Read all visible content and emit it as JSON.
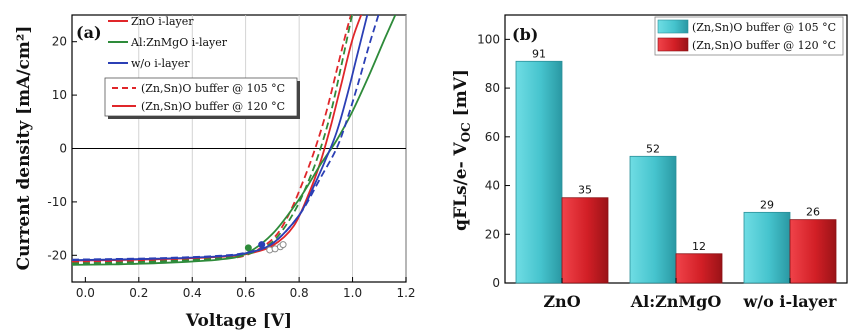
{
  "chart_data": [
    {
      "type": "line",
      "panel_label": "(a)",
      "xlabel": "Voltage [V]",
      "ylabel": "Current density [mA/cm²]",
      "xlim": [
        -0.05,
        1.2
      ],
      "ylim": [
        -25,
        25
      ],
      "xticks": [
        0.0,
        0.2,
        0.4,
        0.6,
        0.8,
        1.0,
        1.2
      ],
      "xtick_labels": [
        "0.0",
        "0.2",
        "0.4",
        "0.6",
        "0.8",
        "1.0",
        "1.2"
      ],
      "yticks": [
        -20,
        -10,
        0,
        10,
        20
      ],
      "ytick_labels": [
        "-20",
        "-10",
        "0",
        "10",
        "20"
      ],
      "grid": "vertical",
      "legend_layers": [
        {
          "name": "ZnO i-layer",
          "color": "#e0262a"
        },
        {
          "name": "Al:ZnMgO i-layer",
          "color": "#2e8b3a"
        },
        {
          "name": "w/o i-layer",
          "color": "#2b3fb5"
        }
      ],
      "legend_buffers": [
        {
          "name": "(Zn,Sn)O buffer @ 105 °C",
          "dash": "dashed",
          "color": "#e0262a"
        },
        {
          "name": "(Zn,Sn)O buffer @ 120 °C",
          "dash": "solid",
          "color": "#e0262a"
        }
      ],
      "series": [
        {
          "name": "ZnO i-layer",
          "buffer": "(Zn,Sn)O buffer @ 120 °C",
          "color": "#e0262a",
          "dash": "solid",
          "x": [
            -0.05,
            0.1,
            0.3,
            0.5,
            0.6,
            0.7,
            0.78,
            0.84,
            0.88,
            0.92,
            0.96,
            1.0,
            1.04
          ],
          "y": [
            -21.0,
            -20.9,
            -20.7,
            -20.3,
            -19.8,
            -18.2,
            -14.5,
            -8.0,
            -2.5,
            4.5,
            12.5,
            20.5,
            26.0
          ]
        },
        {
          "name": "ZnO i-layer",
          "buffer": "(Zn,Sn)O buffer @ 105 °C",
          "color": "#e0262a",
          "dash": "dashed",
          "x": [
            -0.05,
            0.1,
            0.3,
            0.5,
            0.6,
            0.7,
            0.76,
            0.82,
            0.86,
            0.9,
            0.94,
            0.98,
            1.0
          ],
          "y": [
            -21.2,
            -21.1,
            -20.9,
            -20.5,
            -20.0,
            -17.0,
            -12.5,
            -5.5,
            0.0,
            6.5,
            14.5,
            22.5,
            26.0
          ]
        },
        {
          "name": "Al:ZnMgO i-layer",
          "buffer": "(Zn,Sn)O buffer @ 120 °C",
          "color": "#2e8b3a",
          "dash": "solid",
          "x": [
            -0.05,
            0.1,
            0.3,
            0.5,
            0.6,
            0.7,
            0.8,
            0.88,
            0.94,
            1.0,
            1.06,
            1.12,
            1.16
          ],
          "y": [
            -21.8,
            -21.7,
            -21.4,
            -20.8,
            -19.7,
            -16.0,
            -9.5,
            -3.0,
            1.5,
            7.0,
            13.5,
            20.5,
            25.0
          ]
        },
        {
          "name": "Al:ZnMgO i-layer",
          "buffer": "(Zn,Sn)O buffer @ 105 °C",
          "color": "#2e8b3a",
          "dash": "dashed",
          "x": [
            -0.05,
            0.1,
            0.3,
            0.5,
            0.6,
            0.7,
            0.78,
            0.84,
            0.88,
            0.92,
            0.96,
            1.0
          ],
          "y": [
            -21.5,
            -21.4,
            -21.1,
            -20.6,
            -19.9,
            -17.5,
            -12.0,
            -5.5,
            0.0,
            7.0,
            16.0,
            25.5
          ]
        },
        {
          "name": "w/o i-layer",
          "buffer": "(Zn,Sn)O buffer @ 120 °C",
          "color": "#2b3fb5",
          "dash": "solid",
          "x": [
            -0.05,
            0.1,
            0.3,
            0.5,
            0.6,
            0.7,
            0.8,
            0.86,
            0.9,
            0.94,
            0.98,
            1.02,
            1.06
          ],
          "y": [
            -20.9,
            -20.8,
            -20.6,
            -20.2,
            -19.6,
            -17.8,
            -12.5,
            -6.5,
            -2.0,
            3.0,
            10.0,
            18.0,
            26.0
          ]
        },
        {
          "name": "w/o i-layer",
          "buffer": "(Zn,Sn)O buffer @ 105 °C",
          "color": "#2b3fb5",
          "dash": "dashed",
          "x": [
            -0.05,
            0.1,
            0.3,
            0.5,
            0.6,
            0.7,
            0.8,
            0.88,
            0.94,
            0.98,
            1.02,
            1.06,
            1.1
          ],
          "y": [
            -20.8,
            -20.7,
            -20.5,
            -20.1,
            -19.5,
            -17.8,
            -12.5,
            -5.5,
            0.0,
            5.5,
            12.0,
            19.0,
            25.5
          ]
        }
      ],
      "mpp_markers": [
        {
          "x": 0.61,
          "y": -18.6,
          "color": "#2e8b3a",
          "fill": "filled"
        },
        {
          "x": 0.66,
          "y": -18.0,
          "color": "#2b3fb5",
          "fill": "filled"
        },
        {
          "x": 0.69,
          "y": -19.0,
          "color": "#8a8a8a",
          "fill": "open"
        },
        {
          "x": 0.71,
          "y": -18.8,
          "color": "#8a8a8a",
          "fill": "open"
        },
        {
          "x": 0.73,
          "y": -18.4,
          "color": "#8a8a8a",
          "fill": "open"
        },
        {
          "x": 0.74,
          "y": -18.0,
          "color": "#8a8a8a",
          "fill": "open"
        }
      ]
    },
    {
      "type": "bar",
      "panel_label": "(b)",
      "xlabel": "",
      "ylabel": "qFLs/e- V_OC [mV]",
      "ylim": [
        0,
        110
      ],
      "yticks": [
        0,
        20,
        40,
        60,
        80,
        100
      ],
      "ytick_labels": [
        "0",
        "20",
        "40",
        "60",
        "80",
        "100"
      ],
      "categories": [
        "ZnO",
        "Al:ZnMgO",
        "w/o i-layer"
      ],
      "series": [
        {
          "name": "(Zn,Sn)O buffer @ 105 °C",
          "color": "#4fc9d2",
          "values": [
            91,
            52,
            29
          ],
          "labels": [
            "91",
            "52",
            "29"
          ]
        },
        {
          "name": "(Zn,Sn)O buffer @ 120 °C",
          "color": "#e0242a",
          "values": [
            35,
            12,
            26
          ],
          "labels": [
            "35",
            "12",
            "26"
          ]
        }
      ],
      "legend_position": "top-right"
    }
  ]
}
